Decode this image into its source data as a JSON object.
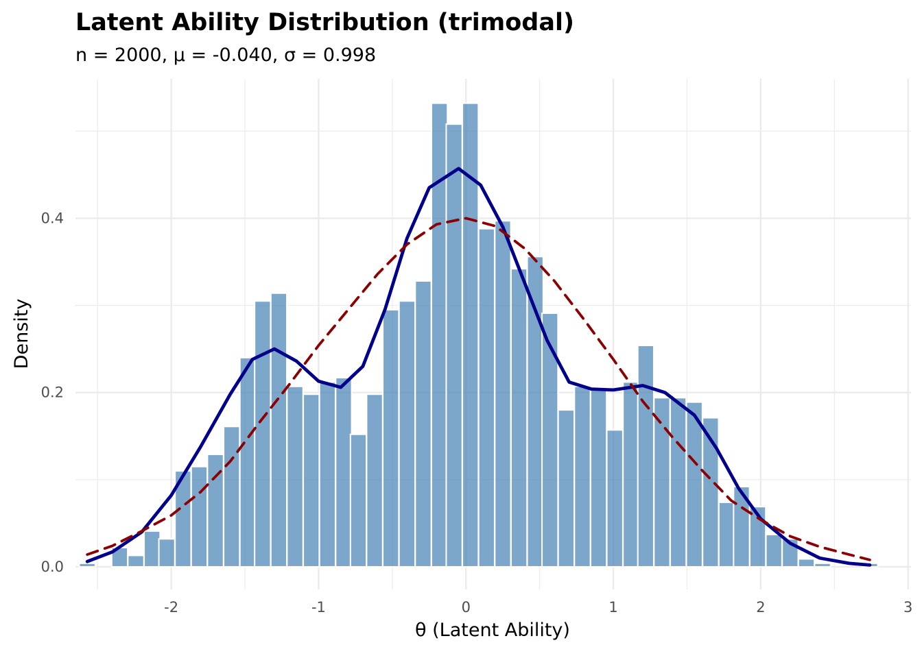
{
  "chart_data": {
    "type": "bar",
    "title": "Latent Ability Distribution (trimodal)",
    "subtitle": "n = 2000, μ = -0.040, σ = 0.998",
    "xlabel": "θ (Latent Ability)",
    "ylabel": "Density",
    "xlim": [
      -2.65,
      3.02
    ],
    "ylim": [
      -0.026,
      0.56
    ],
    "x_ticks": [
      -2,
      -1,
      0,
      1,
      2,
      3
    ],
    "x_tick_labels": [
      "-2",
      "-1",
      "0",
      "1",
      "2",
      "3"
    ],
    "y_ticks": [
      0.0,
      0.2,
      0.4
    ],
    "y_tick_labels": [
      "0.0",
      "0.2",
      "0.4"
    ],
    "grid": true,
    "bar_color": "#4682B4",
    "bin_width": 0.1083,
    "bins": [
      {
        "x": -2.57,
        "density": 0.004
      },
      {
        "x": -2.35,
        "density": 0.022
      },
      {
        "x": -2.24,
        "density": 0.013
      },
      {
        "x": -2.13,
        "density": 0.041
      },
      {
        "x": -2.03,
        "density": 0.032
      },
      {
        "x": -1.92,
        "density": 0.11
      },
      {
        "x": -1.81,
        "density": 0.115
      },
      {
        "x": -1.7,
        "density": 0.129
      },
      {
        "x": -1.59,
        "density": 0.161
      },
      {
        "x": -1.48,
        "density": 0.24
      },
      {
        "x": -1.38,
        "density": 0.305
      },
      {
        "x": -1.27,
        "density": 0.314
      },
      {
        "x": -1.16,
        "density": 0.207
      },
      {
        "x": -1.05,
        "density": 0.198
      },
      {
        "x": -0.94,
        "density": 0.212
      },
      {
        "x": -0.83,
        "density": 0.217
      },
      {
        "x": -0.73,
        "density": 0.152
      },
      {
        "x": -0.62,
        "density": 0.198
      },
      {
        "x": -0.51,
        "density": 0.295
      },
      {
        "x": -0.4,
        "density": 0.305
      },
      {
        "x": -0.29,
        "density": 0.328
      },
      {
        "x": -0.18,
        "density": 0.532
      },
      {
        "x": -0.08,
        "density": 0.508
      },
      {
        "x": 0.03,
        "density": 0.532
      },
      {
        "x": 0.14,
        "density": 0.388
      },
      {
        "x": 0.25,
        "density": 0.397
      },
      {
        "x": 0.36,
        "density": 0.342
      },
      {
        "x": 0.47,
        "density": 0.356
      },
      {
        "x": 0.57,
        "density": 0.291
      },
      {
        "x": 0.68,
        "density": 0.18
      },
      {
        "x": 0.79,
        "density": 0.207
      },
      {
        "x": 0.9,
        "density": 0.203
      },
      {
        "x": 1.01,
        "density": 0.157
      },
      {
        "x": 1.12,
        "density": 0.212
      },
      {
        "x": 1.22,
        "density": 0.254
      },
      {
        "x": 1.33,
        "density": 0.194
      },
      {
        "x": 1.44,
        "density": 0.194
      },
      {
        "x": 1.55,
        "density": 0.189
      },
      {
        "x": 1.66,
        "density": 0.171
      },
      {
        "x": 1.77,
        "density": 0.074
      },
      {
        "x": 1.87,
        "density": 0.092
      },
      {
        "x": 1.98,
        "density": 0.069
      },
      {
        "x": 2.09,
        "density": 0.037
      },
      {
        "x": 2.2,
        "density": 0.032
      },
      {
        "x": 2.31,
        "density": 0.009
      },
      {
        "x": 2.42,
        "density": 0.004
      },
      {
        "x": 2.74,
        "density": 0.004
      }
    ],
    "series": [
      {
        "type": "line",
        "style": "solid",
        "color": "#00008B",
        "points": [
          [
            -2.57,
            0.006
          ],
          [
            -2.4,
            0.017
          ],
          [
            -2.2,
            0.04
          ],
          [
            -2.0,
            0.082
          ],
          [
            -1.8,
            0.138
          ],
          [
            -1.6,
            0.198
          ],
          [
            -1.45,
            0.238
          ],
          [
            -1.3,
            0.25
          ],
          [
            -1.15,
            0.236
          ],
          [
            -1.0,
            0.213
          ],
          [
            -0.85,
            0.206
          ],
          [
            -0.7,
            0.23
          ],
          [
            -0.55,
            0.295
          ],
          [
            -0.4,
            0.377
          ],
          [
            -0.25,
            0.435
          ],
          [
            -0.05,
            0.457
          ],
          [
            0.1,
            0.438
          ],
          [
            0.25,
            0.39
          ],
          [
            0.4,
            0.325
          ],
          [
            0.55,
            0.26
          ],
          [
            0.7,
            0.212
          ],
          [
            0.85,
            0.204
          ],
          [
            1.0,
            0.203
          ],
          [
            1.2,
            0.208
          ],
          [
            1.35,
            0.2
          ],
          [
            1.55,
            0.174
          ],
          [
            1.7,
            0.136
          ],
          [
            1.85,
            0.09
          ],
          [
            2.0,
            0.055
          ],
          [
            2.2,
            0.027
          ],
          [
            2.4,
            0.01
          ],
          [
            2.6,
            0.004
          ],
          [
            2.74,
            0.002
          ]
        ]
      },
      {
        "type": "line",
        "style": "dashed",
        "color": "#8B0000",
        "points": [
          [
            -2.57,
            0.014
          ],
          [
            -2.4,
            0.024
          ],
          [
            -2.2,
            0.041
          ],
          [
            -2.0,
            0.059
          ],
          [
            -1.8,
            0.086
          ],
          [
            -1.6,
            0.121
          ],
          [
            -1.4,
            0.166
          ],
          [
            -1.2,
            0.209
          ],
          [
            -1.0,
            0.254
          ],
          [
            -0.8,
            0.295
          ],
          [
            -0.6,
            0.336
          ],
          [
            -0.4,
            0.37
          ],
          [
            -0.2,
            0.393
          ],
          [
            0.0,
            0.4
          ],
          [
            0.2,
            0.391
          ],
          [
            0.4,
            0.365
          ],
          [
            0.6,
            0.328
          ],
          [
            0.8,
            0.284
          ],
          [
            1.0,
            0.238
          ],
          [
            1.2,
            0.19
          ],
          [
            1.4,
            0.149
          ],
          [
            1.6,
            0.111
          ],
          [
            1.8,
            0.076
          ],
          [
            2.0,
            0.054
          ],
          [
            2.2,
            0.035
          ],
          [
            2.4,
            0.023
          ],
          [
            2.6,
            0.014
          ],
          [
            2.74,
            0.008
          ]
        ]
      }
    ]
  }
}
